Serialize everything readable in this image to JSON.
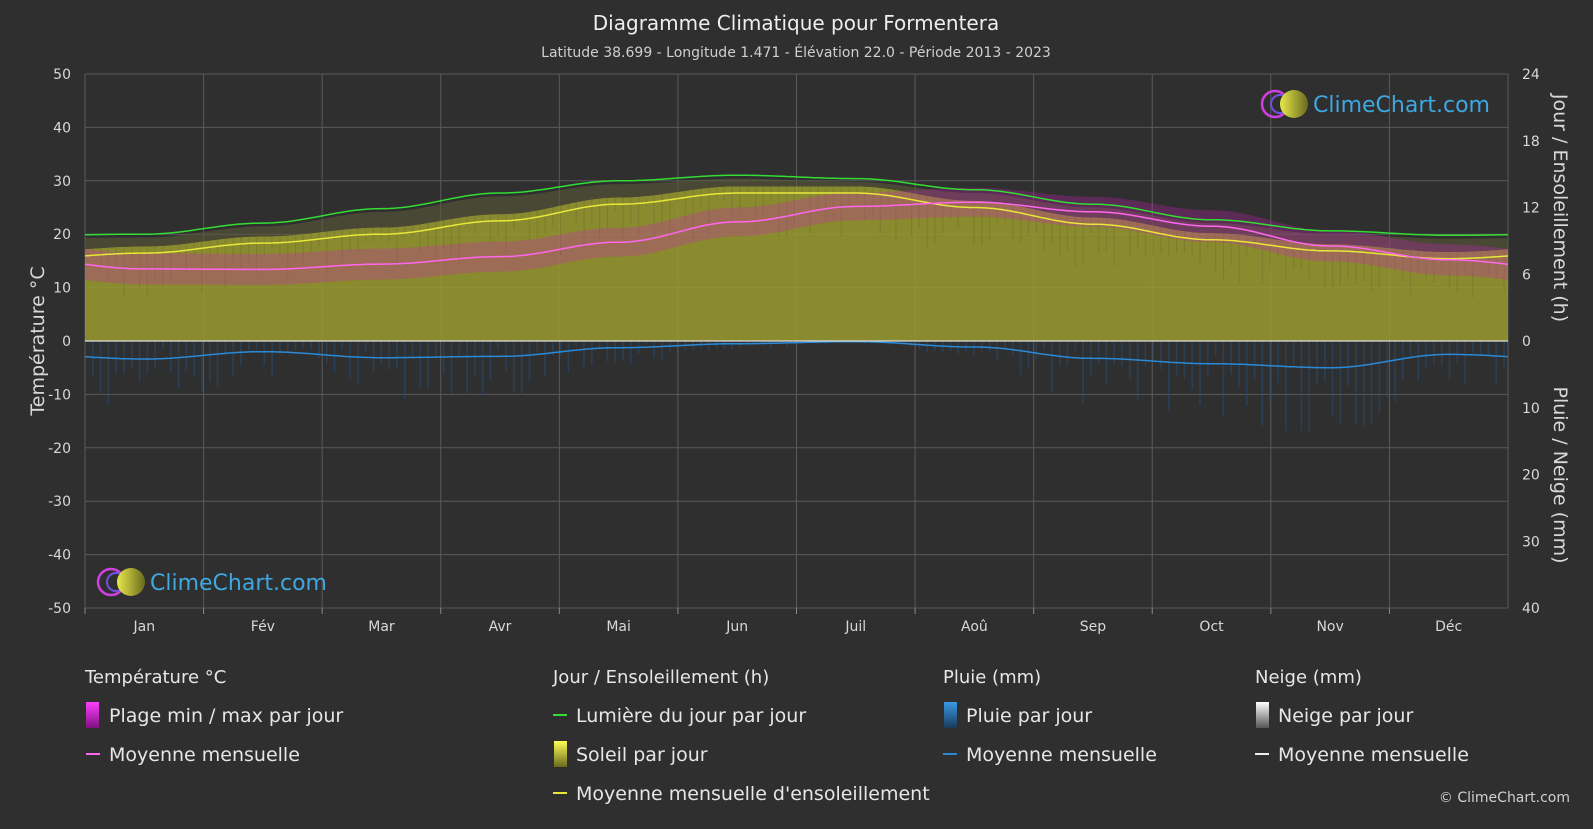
{
  "chart_data": {
    "type": "line",
    "title": "Diagramme Climatique pour Formentera",
    "subtitle": "Latitude 38.699 - Longitude 1.471 - Élévation 22.0 - Période 2013 - 2023",
    "left_axis": {
      "label": "Température °C",
      "range": [
        -50,
        50
      ],
      "ticks": [
        "50",
        "40",
        "30",
        "20",
        "10",
        "0",
        "-10",
        "-20",
        "-30",
        "-40",
        "-50"
      ]
    },
    "right_axis_top": {
      "label": "Jour / Ensoleillement (h)",
      "range": [
        0,
        24
      ],
      "ticks": [
        "24",
        "18",
        "12",
        "6",
        "0"
      ]
    },
    "right_axis_bottom": {
      "label": "Pluie / Neige (mm)",
      "range": [
        0,
        40
      ],
      "ticks": [
        "10",
        "20",
        "30",
        "40"
      ]
    },
    "months": [
      "Jan",
      "Fév",
      "Mar",
      "Avr",
      "Mai",
      "Jun",
      "Juil",
      "Aoû",
      "Sep",
      "Oct",
      "Nov",
      "Déc"
    ],
    "grid": true,
    "series": [
      {
        "name": "Lumière du jour par jour",
        "axis": "hours",
        "color": "#33dd33",
        "values": [
          9.6,
          10.6,
          11.9,
          13.3,
          14.4,
          14.9,
          14.6,
          13.6,
          12.3,
          10.9,
          9.9,
          9.5
        ]
      },
      {
        "name": "Moyenne mensuelle d'ensoleillement",
        "axis": "hours",
        "color": "#e8e83a",
        "values": [
          7.9,
          8.8,
          9.6,
          10.8,
          12.3,
          13.3,
          13.3,
          12.0,
          10.5,
          9.1,
          8.1,
          7.4
        ]
      },
      {
        "name": "Moyenne mensuelle",
        "group": "Température °C",
        "axis": "temp",
        "color": "#ff66ee",
        "values": [
          13.5,
          13.4,
          14.4,
          15.8,
          18.5,
          22.3,
          25.2,
          26.0,
          24.2,
          21.5,
          17.8,
          15.2
        ]
      },
      {
        "name": "Moyenne mensuelle",
        "group": "Pluie (mm)",
        "axis": "rain",
        "color": "#2a8ad8",
        "values": [
          2.7,
          1.6,
          2.5,
          2.3,
          1.0,
          0.4,
          0.1,
          0.9,
          2.6,
          3.4,
          4.0,
          2.0
        ]
      }
    ],
    "temp_range_band": {
      "name": "Plage min / max par jour",
      "min": [
        10.6,
        10.5,
        11.5,
        13.0,
        15.8,
        19.6,
        22.6,
        23.3,
        21.4,
        18.5,
        14.9,
        12.3
      ],
      "max": [
        16.4,
        16.3,
        17.3,
        18.6,
        21.2,
        25.0,
        27.8,
        28.7,
        27.0,
        24.5,
        20.7,
        18.1
      ]
    },
    "sunshine_daily": "Soleil par jour",
    "rain_daily": "Pluie par jour",
    "snow_daily": "Neige par jour"
  },
  "legend": {
    "temp_header": "Température °C",
    "temp_range": "Plage min / max par jour",
    "temp_mean": "Moyenne mensuelle",
    "sun_header": "Jour / Ensoleillement (h)",
    "daylight": "Lumière du jour par jour",
    "sun_daily": "Soleil par jour",
    "sun_mean": "Moyenne mensuelle d'ensoleillement",
    "rain_header": "Pluie (mm)",
    "rain_daily": "Pluie par jour",
    "rain_mean": "Moyenne mensuelle",
    "snow_header": "Neige (mm)",
    "snow_daily": "Neige par jour",
    "snow_mean": "Moyenne mensuelle"
  },
  "brand": {
    "logo_text": "ClimeChart.com",
    "copyright": "© ClimeChart.com"
  },
  "colors": {
    "background": "#2f2f2f",
    "temp_band": "#d020c0",
    "sun_fill": "#b0b030",
    "rain_bars": "#2a6aa8",
    "daylight": "#33dd33",
    "sun_mean": "#e8e83a",
    "temp_mean": "#ff66ee",
    "rain_mean": "#2a8ad8"
  }
}
